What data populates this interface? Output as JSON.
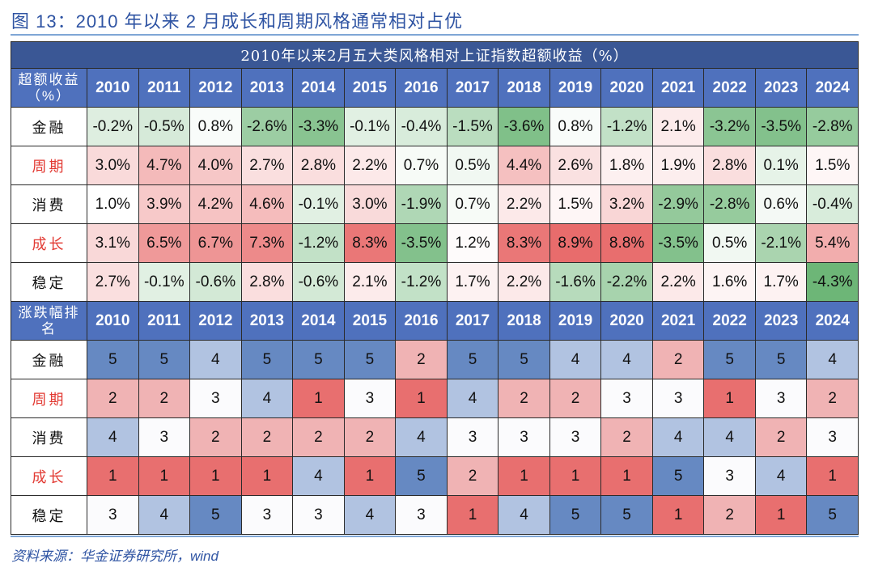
{
  "figure_title": "图 13：2010 年以来 2 月成长和周期风格通常相对占优",
  "source": "资料来源：华金证券研究所，wind",
  "chart_data": [
    {
      "type": "heatmap",
      "title": "2010年以来2月五大类风格相对上证指数超额收益（%）",
      "row_header_label": "超额收益（%）",
      "categories": [
        "2010",
        "2011",
        "2012",
        "2013",
        "2014",
        "2015",
        "2016",
        "2017",
        "2018",
        "2019",
        "2020",
        "2021",
        "2022",
        "2023",
        "2024"
      ],
      "rows": [
        "金融",
        "周期",
        "消费",
        "成长",
        "稳定"
      ],
      "highlighted_rows": [
        "周期",
        "成长"
      ],
      "series": [
        {
          "name": "金融",
          "values": [
            -0.2,
            -0.5,
            0.8,
            -2.6,
            -3.3,
            -0.1,
            -0.4,
            -1.5,
            -3.6,
            0.8,
            -1.2,
            2.1,
            -3.2,
            -3.5,
            -2.8
          ]
        },
        {
          "name": "周期",
          "values": [
            3.0,
            4.7,
            4.0,
            2.7,
            2.8,
            2.2,
            0.7,
            0.5,
            4.4,
            2.6,
            1.8,
            1.9,
            2.8,
            0.1,
            1.5
          ]
        },
        {
          "name": "消费",
          "values": [
            1.0,
            3.9,
            4.2,
            4.6,
            -0.1,
            3.0,
            -1.9,
            0.7,
            2.2,
            1.5,
            3.2,
            -2.9,
            -2.8,
            0.6,
            -0.4
          ]
        },
        {
          "name": "成长",
          "values": [
            3.1,
            6.5,
            6.7,
            7.3,
            -1.2,
            8.3,
            -3.5,
            1.2,
            8.3,
            8.9,
            8.8,
            -3.5,
            0.5,
            -2.1,
            5.4
          ]
        },
        {
          "name": "稳定",
          "values": [
            2.7,
            -0.1,
            -0.6,
            2.8,
            -0.6,
            2.1,
            -1.2,
            1.7,
            2.2,
            -1.6,
            -2.2,
            2.2,
            1.6,
            1.7,
            -4.3
          ]
        }
      ],
      "color_scale": {
        "negative": "#6db677",
        "neutral": "#ffffff",
        "positive": "#e86c6c"
      }
    },
    {
      "type": "heatmap",
      "title": "涨跌幅排名",
      "row_header_label": "涨跌幅排名",
      "categories": [
        "2010",
        "2011",
        "2012",
        "2013",
        "2014",
        "2015",
        "2016",
        "2017",
        "2018",
        "2019",
        "2020",
        "2021",
        "2022",
        "2023",
        "2024"
      ],
      "rows": [
        "金融",
        "周期",
        "消费",
        "成长",
        "稳定"
      ],
      "highlighted_rows": [
        "周期",
        "成长"
      ],
      "series": [
        {
          "name": "金融",
          "values": [
            5,
            5,
            4,
            5,
            5,
            5,
            2,
            5,
            5,
            4,
            4,
            2,
            5,
            5,
            4
          ]
        },
        {
          "name": "周期",
          "values": [
            2,
            2,
            3,
            4,
            1,
            3,
            1,
            4,
            2,
            2,
            3,
            3,
            1,
            3,
            2
          ]
        },
        {
          "name": "消费",
          "values": [
            4,
            3,
            2,
            2,
            2,
            2,
            4,
            3,
            3,
            3,
            2,
            4,
            4,
            2,
            3
          ]
        },
        {
          "name": "成长",
          "values": [
            1,
            1,
            1,
            1,
            4,
            1,
            5,
            2,
            1,
            1,
            1,
            5,
            3,
            4,
            1
          ]
        },
        {
          "name": "稳定",
          "values": [
            3,
            4,
            5,
            3,
            3,
            4,
            3,
            1,
            4,
            5,
            5,
            1,
            2,
            1,
            5
          ]
        }
      ],
      "rank_colors": {
        "1": "#e86f6f",
        "2": "#f0b3b4",
        "3": "#fbfbfd",
        "4": "#b1c3e1",
        "5": "#6689c2"
      }
    }
  ],
  "table": {
    "caption": "2010年以来2月五大类风格相对上证指数超额收益（%）",
    "excess_header": "超额收益（%）",
    "rank_header": "涨跌幅排名"
  }
}
